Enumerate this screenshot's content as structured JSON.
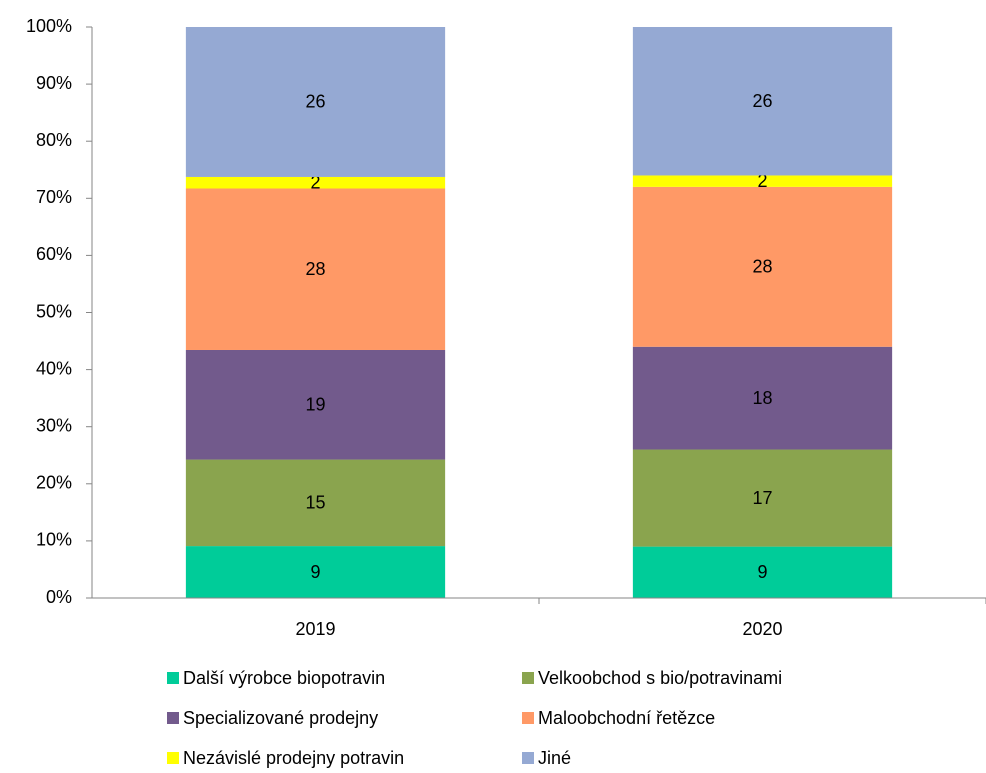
{
  "chart_data": {
    "type": "bar",
    "stacking": "percent",
    "categories": [
      "2019",
      "2020"
    ],
    "series": [
      {
        "name": "Další výrobce biopotravin",
        "color": "#00cc99",
        "values": [
          9,
          9
        ]
      },
      {
        "name": "Velkoobchod s bio/potravinami",
        "color": "#8aa44e",
        "values": [
          15,
          17
        ]
      },
      {
        "name": "Specializované prodejny",
        "color": "#725a8c",
        "values": [
          19,
          18
        ]
      },
      {
        "name": "Maloobchodní řetězce",
        "color": "#ff9966",
        "values": [
          28,
          28
        ]
      },
      {
        "name": "Nezávislé prodejny potravin",
        "color": "#ffff00",
        "values": [
          2,
          2
        ]
      },
      {
        "name": "Jiné",
        "color": "#95a9d3",
        "values": [
          26,
          26
        ]
      }
    ],
    "ylim": [
      0,
      100
    ],
    "yticks": [
      {
        "value": 0,
        "label": "0%"
      },
      {
        "value": 10,
        "label": "10%"
      },
      {
        "value": 20,
        "label": "20%"
      },
      {
        "value": 30,
        "label": "30%"
      },
      {
        "value": 40,
        "label": "40%"
      },
      {
        "value": 50,
        "label": "50%"
      },
      {
        "value": 60,
        "label": "60%"
      },
      {
        "value": 70,
        "label": "70%"
      },
      {
        "value": 80,
        "label": "80%"
      },
      {
        "value": 90,
        "label": "90%"
      },
      {
        "value": 100,
        "label": "100%"
      }
    ],
    "grid": false,
    "legend": "bottom"
  }
}
